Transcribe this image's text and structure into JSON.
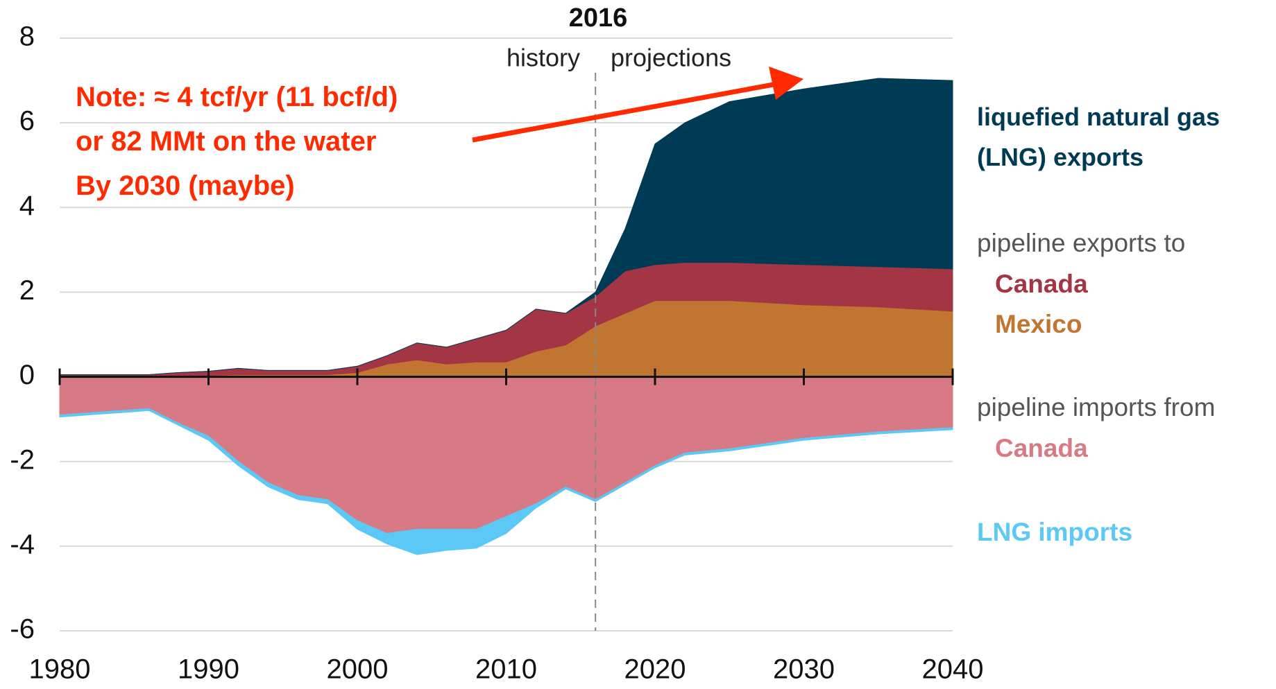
{
  "chart_data": {
    "type": "stacked_area",
    "marker": {
      "year": "2016",
      "left": "history",
      "right": "projections"
    },
    "annotation": [
      "Note: ≈ 4 tcf/yr (11 bcf/d)",
      "or 82 MMt on the water",
      "By 2030 (maybe)"
    ],
    "groups": {
      "exports": "pipeline exports to",
      "imports": "pipeline imports from"
    },
    "x": [
      1980,
      1984,
      1986,
      1988,
      1990,
      1992,
      1994,
      1996,
      1998,
      2000,
      2002,
      2004,
      2006,
      2008,
      2010,
      2012,
      2014,
      2016,
      2018,
      2020,
      2022,
      2025,
      2030,
      2035,
      2040
    ],
    "series": [
      {
        "name": "Mexico",
        "group": "exports",
        "color": "#c07530",
        "values": [
          0.02,
          0.02,
          0.02,
          0.03,
          0.03,
          0.05,
          0.05,
          0.05,
          0.05,
          0.1,
          0.3,
          0.4,
          0.3,
          0.35,
          0.35,
          0.6,
          0.75,
          1.2,
          1.5,
          1.8,
          1.8,
          1.8,
          1.7,
          1.65,
          1.55
        ]
      },
      {
        "name": "Canada",
        "group": "exports",
        "color": "#a33545",
        "values": [
          0.03,
          0.03,
          0.03,
          0.07,
          0.1,
          0.15,
          0.1,
          0.1,
          0.1,
          0.15,
          0.2,
          0.4,
          0.4,
          0.55,
          0.75,
          1.0,
          0.75,
          0.7,
          1.0,
          0.85,
          0.9,
          0.9,
          0.95,
          0.95,
          1.0
        ]
      },
      {
        "name": "liquefied natural gas (LNG) exports",
        "group": "",
        "color": "#003b55",
        "values": [
          0,
          0,
          0,
          0,
          0,
          0,
          0,
          0,
          0,
          0,
          0,
          0,
          0,
          0,
          0,
          0,
          0,
          0.1,
          1.0,
          2.85,
          3.3,
          3.8,
          4.15,
          4.45,
          4.45
        ]
      },
      {
        "name": "Canada",
        "group": "imports",
        "color": "#d87a85",
        "values": [
          -0.9,
          -0.8,
          -0.75,
          -1.1,
          -1.4,
          -2.0,
          -2.5,
          -2.8,
          -2.9,
          -3.4,
          -3.7,
          -3.6,
          -3.6,
          -3.6,
          -3.3,
          -3.0,
          -2.6,
          -2.9,
          -2.5,
          -2.1,
          -1.8,
          -1.7,
          -1.45,
          -1.3,
          -1.2
        ]
      },
      {
        "name": "LNG imports",
        "group": "",
        "color": "#5bc8f5",
        "values": [
          -0.05,
          -0.05,
          -0.05,
          -0.05,
          -0.1,
          -0.1,
          -0.1,
          -0.1,
          -0.1,
          -0.2,
          -0.25,
          -0.6,
          -0.5,
          -0.45,
          -0.4,
          -0.1,
          -0.05,
          -0.05,
          -0.05,
          -0.05,
          -0.05,
          -0.05,
          -0.05,
          -0.05,
          -0.05
        ]
      }
    ],
    "xlim": [
      1980,
      2040
    ],
    "ylim": [
      -6,
      8
    ],
    "xticks": [
      1980,
      1990,
      2000,
      2010,
      2020,
      2030,
      2040
    ],
    "yticks": [
      -6,
      -4,
      -2,
      0,
      2,
      4,
      6,
      8
    ],
    "grid": true
  }
}
